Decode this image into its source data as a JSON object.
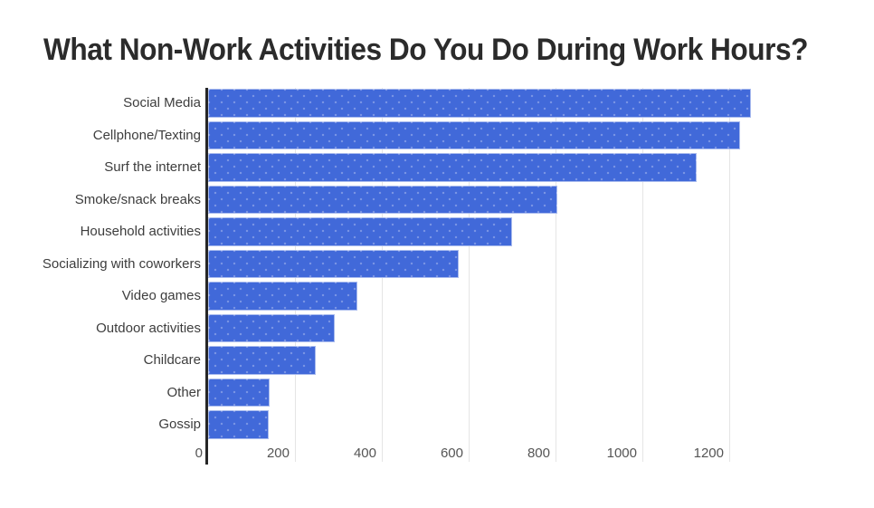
{
  "title": "What Non-Work Activities Do You Do During Work Hours?",
  "chart_data": {
    "type": "bar",
    "orientation": "horizontal",
    "title": "What Non-Work Activities Do You Do During Work Hours?",
    "categories": [
      "Social Media",
      "Cellphone/Texting",
      "Surf the internet",
      "Smoke/snack breaks",
      "Household activities",
      "Socializing with coworkers",
      "Video games",
      "Outdoor activities",
      "Childcare",
      "Other",
      "Gossip"
    ],
    "values": [
      1250,
      1225,
      1125,
      805,
      700,
      578,
      344,
      292,
      248,
      141,
      139
    ],
    "xlabel": "",
    "ylabel": "",
    "xlim": [
      0,
      1400
    ],
    "x_ticks": [
      0,
      200,
      400,
      600,
      800,
      1000,
      1200
    ],
    "grid": "vertical-gridlines-on",
    "legend": "none",
    "colors": {
      "bar": "#4169d9",
      "bar_dot_texture": "#6b8ae3",
      "axis_line": "#262626",
      "gridline": "#e5e5e5",
      "title_text": "#2b2b2b",
      "category_text": "#3d3d3d",
      "tick_text": "#555555",
      "background": "#ffffff"
    }
  }
}
